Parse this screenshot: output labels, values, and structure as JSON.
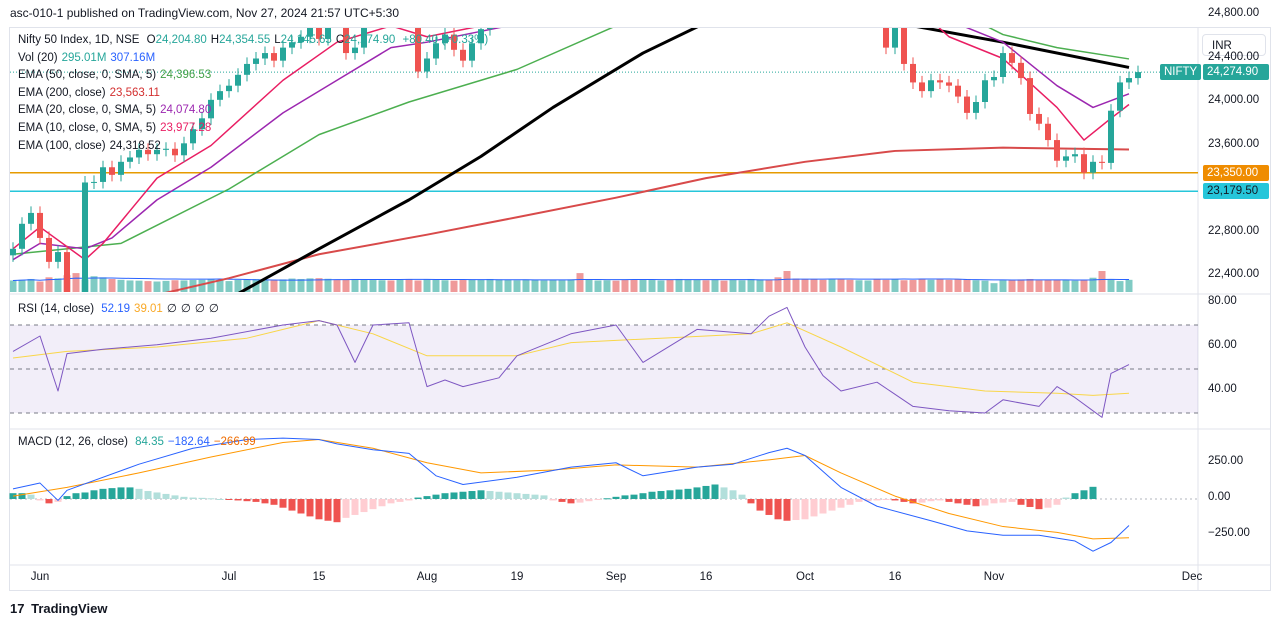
{
  "header": "asc-010-1 published on TradingView.com, Nov 27, 2024 21:57 UTC+5:30",
  "currency": "INR",
  "footer": {
    "logo": "17",
    "brand": "TradingView"
  },
  "legend": {
    "symbol": "Nifty 50 Index, 1D, NSE",
    "ohlc": [
      {
        "k": "O",
        "v": "24,204.80"
      },
      {
        "k": "H",
        "v": "24,354.55"
      },
      {
        "k": "L",
        "v": "24,145.65"
      },
      {
        "k": "C",
        "v": "24,274.90"
      }
    ],
    "change": "+80.40 (+0.33%)",
    "lines": [
      {
        "name": "Vol (20)",
        "values": [
          "295.01M",
          "307.16M"
        ],
        "colors": [
          "#26a69a",
          "#2962ff"
        ]
      },
      {
        "name": "EMA (50, close, 0, SMA, 5)",
        "values": [
          "24,396.53"
        ],
        "colors": [
          "#43a047"
        ]
      },
      {
        "name": "EMA (200, close)",
        "values": [
          "23,563.11"
        ],
        "colors": [
          "#d32f2f"
        ]
      },
      {
        "name": "EMA (20, close, 0, SMA, 5)",
        "values": [
          "24,074.80"
        ],
        "colors": [
          "#9c27b0"
        ]
      },
      {
        "name": "EMA (10, close, 0, SMA, 5)",
        "values": [
          "23,977.28"
        ],
        "colors": [
          "#e91e63"
        ]
      },
      {
        "name": "EMA (100, close)",
        "values": [
          "24,318.52"
        ],
        "colors": [
          "#131722"
        ]
      }
    ]
  },
  "rsi_legend": {
    "name": "RSI (14, close)",
    "values": [
      "52.19",
      "39.01",
      "∅",
      "∅",
      "∅",
      "∅"
    ],
    "colors": [
      "#2962ff",
      "#f9a825",
      "#131722",
      "#131722",
      "#131722",
      "#131722"
    ]
  },
  "macd_legend": {
    "name": "MACD (12, 26, close)",
    "values": [
      "84.35",
      "−182.64",
      "−266.99"
    ],
    "colors": [
      "#26a69a",
      "#2962ff",
      "#ef6c00"
    ]
  },
  "chart_data": {
    "type": "candlestick",
    "price_axis": {
      "labels": [
        "24,800.00",
        "24,400.00",
        "24,000.00",
        "23,600.00",
        "22,800.00",
        "22,400.00"
      ],
      "values": [
        24800,
        24400,
        24000,
        23600,
        22800,
        22400
      ]
    },
    "price_tags": [
      {
        "label": "NIFTY",
        "value": "24,274.90",
        "color": "#26a69a"
      },
      {
        "label": "",
        "value": "23,350.00",
        "color": "#ef8c00"
      },
      {
        "label": "",
        "value": "23,179.50",
        "color": "#26c6da"
      }
    ],
    "horizontal_lines": [
      {
        "value": 23350,
        "color": "#e69b00"
      },
      {
        "value": 23179.5,
        "color": "#26c6da"
      }
    ],
    "last_close": 24274.9,
    "x_labels": [
      "Jun",
      "Jul",
      "15",
      "Aug",
      "19",
      "Sep",
      "16",
      "Oct",
      "16",
      "Nov",
      "Dec"
    ],
    "x_label_bars": [
      3,
      24,
      34,
      46,
      56,
      67,
      77,
      88,
      98,
      109,
      131
    ],
    "closes": [
      22650,
      22880,
      22980,
      22750,
      22530,
      22620,
      22150,
      21890,
      23260,
      23265,
      23400,
      23330,
      23450,
      23490,
      23560,
      23520,
      23560,
      23570,
      23510,
      23620,
      23750,
      23850,
      24020,
      24100,
      24150,
      24250,
      24350,
      24400,
      24450,
      24380,
      24500,
      24550,
      24600,
      24700,
      24580,
      24900,
      24850,
      24450,
      24500,
      24800,
      24950,
      25010,
      24840,
      24900,
      24830,
      24280,
      24400,
      24540,
      24620,
      24480,
      24380,
      24540,
      24670,
      24770,
      24820,
      24960,
      25030,
      25150,
      25240,
      25270,
      25380,
      25420,
      25420,
      25260,
      25290,
      25380,
      25450,
      25380,
      25250,
      25090,
      25410,
      25550,
      25650,
      25620,
      25630,
      25720,
      25910,
      25830,
      25830,
      25815,
      26000,
      26100,
      26150,
      26200,
      26120,
      25930,
      25750,
      25200,
      25050,
      25010,
      24800,
      25000,
      24950,
      24860,
      24900,
      24990,
      24880,
      24500,
      24750,
      24350,
      24180,
      24100,
      24200,
      24180,
      24150,
      24050,
      23900,
      24000,
      24200,
      24230,
      24450,
      24360,
      24220,
      23890,
      23800,
      23650,
      23460,
      23500,
      23520,
      23350,
      23450,
      23440,
      23920,
      24180,
      24220,
      24275
    ],
    "ema50_points": [
      [
        0,
        22600
      ],
      [
        12,
        22700
      ],
      [
        24,
        23200
      ],
      [
        34,
        23700
      ],
      [
        44,
        24000
      ],
      [
        56,
        24300
      ],
      [
        67,
        24700
      ],
      [
        77,
        25000
      ],
      [
        88,
        25230
      ],
      [
        98,
        25050
      ],
      [
        104,
        24870
      ],
      [
        110,
        24620
      ],
      [
        116,
        24500
      ],
      [
        124,
        24396
      ]
    ],
    "ema200_points": [
      [
        0,
        22100
      ],
      [
        12,
        22150
      ],
      [
        24,
        22380
      ],
      [
        34,
        22600
      ],
      [
        46,
        22780
      ],
      [
        56,
        22940
      ],
      [
        67,
        23120
      ],
      [
        77,
        23300
      ],
      [
        88,
        23450
      ],
      [
        98,
        23550
      ],
      [
        110,
        23580
      ],
      [
        124,
        23563
      ]
    ],
    "ema20_points": [
      [
        0,
        22550
      ],
      [
        3,
        22700
      ],
      [
        8,
        22650
      ],
      [
        11,
        22750
      ],
      [
        16,
        23100
      ],
      [
        22,
        23400
      ],
      [
        30,
        23900
      ],
      [
        36,
        24200
      ],
      [
        42,
        24500
      ],
      [
        46,
        24550
      ],
      [
        52,
        24650
      ],
      [
        58,
        24750
      ],
      [
        64,
        25100
      ],
      [
        70,
        25300
      ],
      [
        76,
        25500
      ],
      [
        82,
        25800
      ],
      [
        86,
        25900
      ],
      [
        92,
        25500
      ],
      [
        98,
        25150
      ],
      [
        104,
        24750
      ],
      [
        110,
        24550
      ],
      [
        116,
        24150
      ],
      [
        120,
        23950
      ],
      [
        124,
        24075
      ]
    ],
    "ema10_points": [
      [
        0,
        22650
      ],
      [
        3,
        22850
      ],
      [
        8,
        22550
      ],
      [
        10,
        22700
      ],
      [
        16,
        23300
      ],
      [
        22,
        23600
      ],
      [
        30,
        24200
      ],
      [
        36,
        24550
      ],
      [
        42,
        24700
      ],
      [
        46,
        24600
      ],
      [
        52,
        24700
      ],
      [
        58,
        24850
      ],
      [
        64,
        25250
      ],
      [
        70,
        25450
      ],
      [
        76,
        25700
      ],
      [
        82,
        26000
      ],
      [
        86,
        26100
      ],
      [
        92,
        25450
      ],
      [
        98,
        25050
      ],
      [
        104,
        24600
      ],
      [
        110,
        24400
      ],
      [
        116,
        23950
      ],
      [
        119,
        23650
      ],
      [
        122,
        23850
      ],
      [
        124,
        23977
      ]
    ],
    "ema100_points": [
      [
        0,
        21600
      ],
      [
        12,
        21700
      ],
      [
        22,
        22100
      ],
      [
        34,
        22650
      ],
      [
        44,
        23100
      ],
      [
        52,
        23500
      ],
      [
        60,
        23950
      ],
      [
        70,
        24450
      ],
      [
        80,
        24850
      ],
      [
        88,
        25050
      ],
      [
        92,
        24930
      ],
      [
        100,
        24700
      ],
      [
        110,
        24550
      ],
      [
        124,
        24318
      ]
    ],
    "volume": [
      55,
      58,
      62,
      50,
      70,
      65,
      80,
      90,
      60,
      75,
      70,
      62,
      58,
      55,
      54,
      52,
      50,
      53,
      56,
      55,
      57,
      58,
      60,
      55,
      52,
      58,
      60,
      62,
      58,
      55,
      60,
      64,
      62,
      65,
      66,
      63,
      60,
      58,
      62,
      60,
      57,
      56,
      55,
      58,
      62,
      55,
      60,
      58,
      56,
      54,
      57,
      60,
      58,
      62,
      60,
      58,
      56,
      60,
      58,
      55,
      57,
      56,
      60,
      90,
      58,
      55,
      56,
      54,
      57,
      58,
      60,
      57,
      55,
      58,
      62,
      60,
      58,
      56,
      60,
      54,
      58,
      56,
      62,
      60,
      58,
      70,
      100,
      64,
      62,
      60,
      58,
      62,
      60,
      58,
      56,
      55,
      60,
      58,
      60,
      56,
      57,
      62,
      58,
      60,
      58,
      60,
      62,
      56,
      54,
      42,
      56,
      58,
      60,
      62,
      56,
      58,
      57,
      58,
      54,
      56,
      68,
      100,
      62,
      52,
      58
    ],
    "rsi_axis": {
      "labels": [
        "80.00",
        "60.00",
        "40.00"
      ],
      "values": [
        80,
        60,
        40
      ],
      "band": [
        30,
        70
      ],
      "mid": 50
    },
    "rsi_points": [
      [
        0,
        58
      ],
      [
        3,
        65
      ],
      [
        5,
        40
      ],
      [
        6,
        57
      ],
      [
        10,
        59
      ],
      [
        16,
        61
      ],
      [
        22,
        64
      ],
      [
        30,
        70
      ],
      [
        34,
        72
      ],
      [
        36,
        70
      ],
      [
        38,
        53
      ],
      [
        40,
        70
      ],
      [
        44,
        71
      ],
      [
        46,
        42
      ],
      [
        48,
        45
      ],
      [
        50,
        42
      ],
      [
        54,
        46
      ],
      [
        56,
        56
      ],
      [
        62,
        66
      ],
      [
        67,
        70
      ],
      [
        70,
        53
      ],
      [
        76,
        68
      ],
      [
        82,
        66
      ],
      [
        84,
        74
      ],
      [
        86,
        78
      ],
      [
        88,
        60
      ],
      [
        90,
        47
      ],
      [
        92,
        40
      ],
      [
        96,
        44
      ],
      [
        100,
        33
      ],
      [
        104,
        31
      ],
      [
        108,
        30
      ],
      [
        110,
        36
      ],
      [
        114,
        33
      ],
      [
        116,
        42
      ],
      [
        118,
        37
      ],
      [
        120,
        31
      ],
      [
        121,
        28
      ],
      [
        122,
        48
      ],
      [
        124,
        52
      ]
    ],
    "rsi_ma_points": [
      [
        0,
        55
      ],
      [
        6,
        58
      ],
      [
        16,
        60
      ],
      [
        26,
        64
      ],
      [
        34,
        72
      ],
      [
        40,
        66
      ],
      [
        46,
        56
      ],
      [
        56,
        56
      ],
      [
        62,
        62
      ],
      [
        72,
        64
      ],
      [
        82,
        66
      ],
      [
        86,
        71
      ],
      [
        92,
        60
      ],
      [
        100,
        44
      ],
      [
        108,
        40
      ],
      [
        116,
        39
      ],
      [
        120,
        38
      ],
      [
        124,
        39
      ]
    ],
    "macd_axis": {
      "labels": [
        "250.00",
        "0.00",
        "−250.00"
      ],
      "values": [
        250,
        0,
        -250
      ]
    },
    "macd_points": [
      [
        0,
        70
      ],
      [
        3,
        110
      ],
      [
        5,
        -10
      ],
      [
        6,
        60
      ],
      [
        14,
        240
      ],
      [
        20,
        350
      ],
      [
        26,
        410
      ],
      [
        30,
        420
      ],
      [
        34,
        410
      ],
      [
        36,
        380
      ],
      [
        40,
        340
      ],
      [
        44,
        315
      ],
      [
        47,
        160
      ],
      [
        50,
        100
      ],
      [
        56,
        150
      ],
      [
        62,
        220
      ],
      [
        67,
        250
      ],
      [
        70,
        160
      ],
      [
        76,
        220
      ],
      [
        80,
        240
      ],
      [
        84,
        320
      ],
      [
        86,
        350
      ],
      [
        88,
        300
      ],
      [
        92,
        80
      ],
      [
        96,
        -50
      ],
      [
        102,
        -150
      ],
      [
        106,
        -220
      ],
      [
        110,
        -250
      ],
      [
        114,
        -250
      ],
      [
        118,
        -290
      ],
      [
        120,
        -360
      ],
      [
        122,
        -300
      ],
      [
        124,
        -183
      ]
    ],
    "signal_points": [
      [
        0,
        20
      ],
      [
        6,
        80
      ],
      [
        14,
        180
      ],
      [
        22,
        290
      ],
      [
        30,
        390
      ],
      [
        34,
        410
      ],
      [
        40,
        350
      ],
      [
        46,
        250
      ],
      [
        52,
        180
      ],
      [
        60,
        200
      ],
      [
        67,
        235
      ],
      [
        76,
        220
      ],
      [
        84,
        270
      ],
      [
        88,
        300
      ],
      [
        92,
        180
      ],
      [
        98,
        20
      ],
      [
        104,
        -100
      ],
      [
        110,
        -190
      ],
      [
        116,
        -230
      ],
      [
        120,
        -275
      ],
      [
        124,
        -267
      ]
    ],
    "macd_hist": [
      40,
      40,
      30,
      -10,
      -30,
      -20,
      20,
      40,
      45,
      60,
      70,
      75,
      80,
      80,
      70,
      55,
      45,
      35,
      25,
      15,
      10,
      8,
      5,
      0,
      -5,
      -10,
      -15,
      -20,
      -30,
      -40,
      -60,
      -80,
      -100,
      -120,
      -140,
      -150,
      -160,
      -130,
      -110,
      -90,
      -70,
      -50,
      -30,
      -20,
      -10,
      10,
      20,
      30,
      40,
      45,
      50,
      55,
      60,
      55,
      50,
      45,
      40,
      35,
      30,
      25,
      -10,
      -20,
      -30,
      -25,
      -15,
      -5,
      5,
      15,
      25,
      30,
      40,
      50,
      55,
      60,
      65,
      70,
      80,
      90,
      100,
      80,
      60,
      30,
      -30,
      -80,
      -110,
      -140,
      -150,
      -145,
      -140,
      -120,
      -100,
      -80,
      -60,
      -40,
      -20,
      -15,
      -10,
      -5,
      -10,
      -20,
      -30,
      -25,
      -15,
      -10,
      -20,
      -30,
      -40,
      -50,
      -45,
      -30,
      -25,
      -20,
      -40,
      -55,
      -70,
      -60,
      -40,
      10,
      40,
      60,
      84
    ]
  }
}
